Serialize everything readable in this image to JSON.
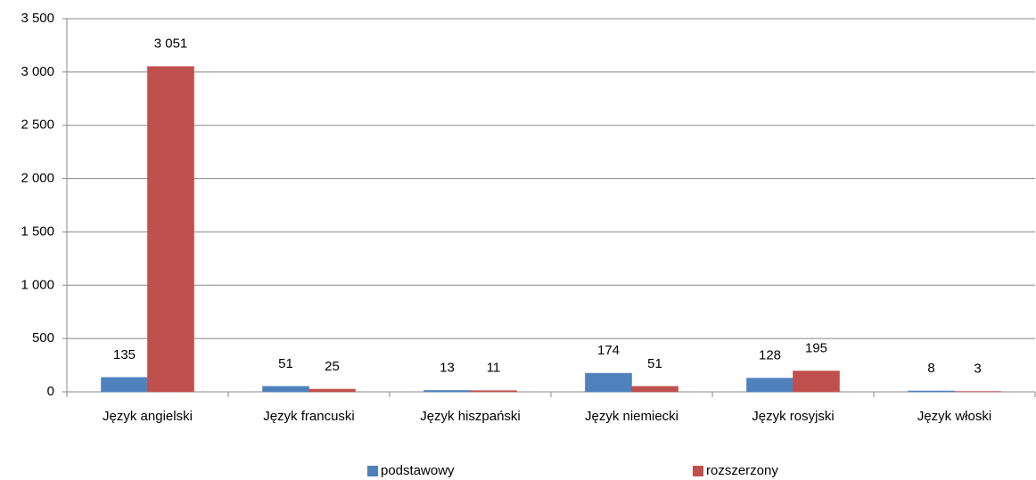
{
  "chart_data": {
    "type": "bar",
    "categories": [
      "Język angielski",
      "Język francuski",
      "Język hiszpański",
      "Język niemiecki",
      "Język rosyjski",
      "Język włoski"
    ],
    "series": [
      {
        "name": "podstawowy",
        "color": "#4f81bd",
        "values": [
          135,
          51,
          13,
          174,
          128,
          8
        ],
        "value_labels": [
          "135",
          "51",
          "13",
          "174",
          "128",
          "8"
        ]
      },
      {
        "name": "rozszerzony",
        "color": "#c0504d",
        "values": [
          3051,
          25,
          11,
          51,
          195,
          3
        ],
        "value_labels": [
          "3 051",
          "25",
          "11",
          "51",
          "195",
          "3"
        ]
      }
    ],
    "ylim": [
      0,
      3500
    ],
    "yticks": [
      0,
      500,
      {
        "value": 1000,
        "label": "1 000"
      },
      {
        "value": 1500,
        "label": "1 500"
      },
      {
        "value": 2000,
        "label": "2 000"
      },
      {
        "value": 2500,
        "label": "2 500"
      },
      {
        "value": 3000,
        "label": "3 000"
      },
      {
        "value": 3500,
        "label": "3 500"
      }
    ],
    "grid": true,
    "legend": "bottom"
  }
}
